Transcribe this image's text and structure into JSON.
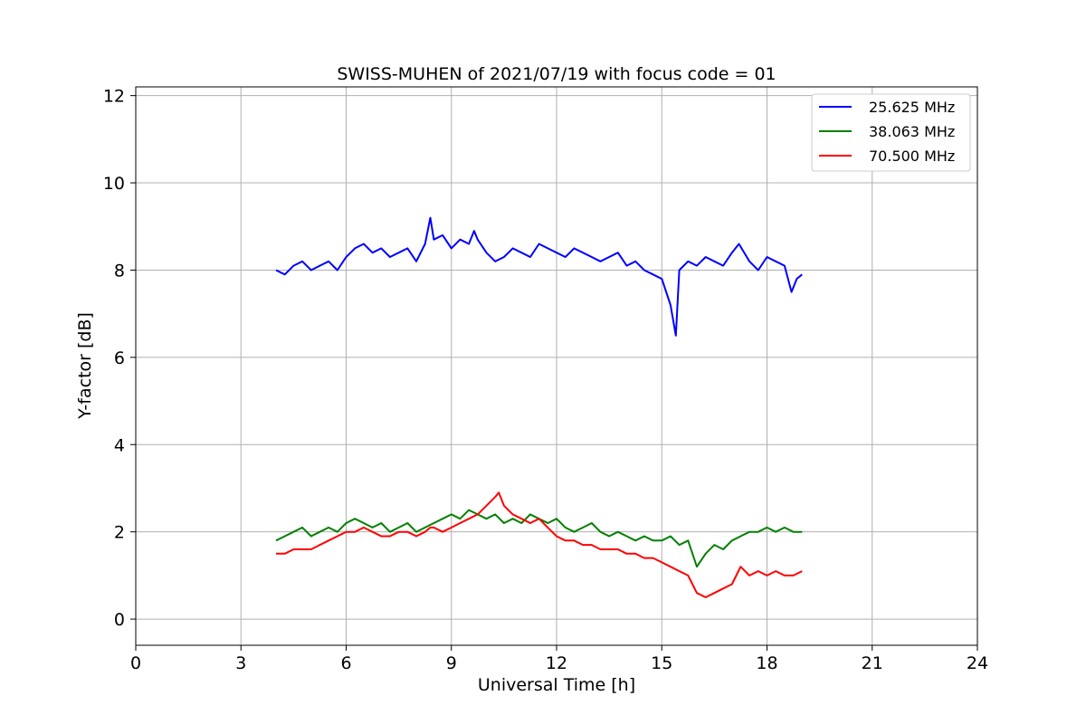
{
  "chart_data": {
    "type": "line",
    "title": "SWISS-MUHEN of 2021/07/19 with focus code = 01",
    "xlabel": "Universal Time [h]",
    "ylabel": "Y-factor [dB]",
    "xlim": [
      0,
      24
    ],
    "ylim": [
      -0.6,
      12.2
    ],
    "xticks": [
      0,
      3,
      6,
      9,
      12,
      15,
      18,
      21,
      24
    ],
    "yticks": [
      0,
      2,
      4,
      6,
      8,
      10,
      12
    ],
    "grid": true,
    "legend_position": "top-right",
    "series": [
      {
        "name": "25.625 MHz",
        "color": "#0000ff",
        "x": [
          4.0,
          4.25,
          4.5,
          4.75,
          5.0,
          5.25,
          5.5,
          5.75,
          6.0,
          6.25,
          6.5,
          6.75,
          7.0,
          7.25,
          7.5,
          7.75,
          8.0,
          8.25,
          8.4,
          8.5,
          8.75,
          9.0,
          9.25,
          9.5,
          9.65,
          9.75,
          10.0,
          10.25,
          10.5,
          10.75,
          11.0,
          11.25,
          11.5,
          11.75,
          12.0,
          12.25,
          12.5,
          12.75,
          13.0,
          13.25,
          13.5,
          13.75,
          14.0,
          14.25,
          14.5,
          14.75,
          15.0,
          15.25,
          15.4,
          15.5,
          15.75,
          16.0,
          16.25,
          16.5,
          16.75,
          17.0,
          17.2,
          17.5,
          17.75,
          18.0,
          18.25,
          18.5,
          18.7,
          18.85,
          19.0
        ],
        "y": [
          8.0,
          7.9,
          8.1,
          8.2,
          8.0,
          8.1,
          8.2,
          8.0,
          8.3,
          8.5,
          8.6,
          8.4,
          8.5,
          8.3,
          8.4,
          8.5,
          8.2,
          8.6,
          9.2,
          8.7,
          8.8,
          8.5,
          8.7,
          8.6,
          8.9,
          8.7,
          8.4,
          8.2,
          8.3,
          8.5,
          8.4,
          8.3,
          8.6,
          8.5,
          8.4,
          8.3,
          8.5,
          8.4,
          8.3,
          8.2,
          8.3,
          8.4,
          8.1,
          8.2,
          8.0,
          7.9,
          7.8,
          7.2,
          6.5,
          8.0,
          8.2,
          8.1,
          8.3,
          8.2,
          8.1,
          8.4,
          8.6,
          8.2,
          8.0,
          8.3,
          8.2,
          8.1,
          7.5,
          7.8,
          7.9
        ]
      },
      {
        "name": "38.063 MHz",
        "color": "#008000",
        "x": [
          4.0,
          4.25,
          4.5,
          4.75,
          5.0,
          5.25,
          5.5,
          5.75,
          6.0,
          6.25,
          6.5,
          6.75,
          7.0,
          7.25,
          7.5,
          7.75,
          8.0,
          8.25,
          8.5,
          8.75,
          9.0,
          9.25,
          9.5,
          9.75,
          10.0,
          10.25,
          10.5,
          10.75,
          11.0,
          11.25,
          11.5,
          11.75,
          12.0,
          12.25,
          12.5,
          12.75,
          13.0,
          13.25,
          13.5,
          13.75,
          14.0,
          14.25,
          14.5,
          14.75,
          15.0,
          15.25,
          15.5,
          15.75,
          16.0,
          16.25,
          16.5,
          16.75,
          17.0,
          17.25,
          17.5,
          17.75,
          18.0,
          18.25,
          18.5,
          18.75,
          19.0
        ],
        "y": [
          1.8,
          1.9,
          2.0,
          2.1,
          1.9,
          2.0,
          2.1,
          2.0,
          2.2,
          2.3,
          2.2,
          2.1,
          2.2,
          2.0,
          2.1,
          2.2,
          2.0,
          2.1,
          2.2,
          2.3,
          2.4,
          2.3,
          2.5,
          2.4,
          2.3,
          2.4,
          2.2,
          2.3,
          2.2,
          2.4,
          2.3,
          2.2,
          2.3,
          2.1,
          2.0,
          2.1,
          2.2,
          2.0,
          1.9,
          2.0,
          1.9,
          1.8,
          1.9,
          1.8,
          1.8,
          1.9,
          1.7,
          1.8,
          1.2,
          1.5,
          1.7,
          1.6,
          1.8,
          1.9,
          2.0,
          2.0,
          2.1,
          2.0,
          2.1,
          2.0,
          2.0
        ]
      },
      {
        "name": "70.500 MHz",
        "color": "#ff0000",
        "x": [
          4.0,
          4.25,
          4.5,
          4.75,
          5.0,
          5.25,
          5.5,
          5.75,
          6.0,
          6.25,
          6.5,
          6.75,
          7.0,
          7.25,
          7.5,
          7.75,
          8.0,
          8.25,
          8.4,
          8.5,
          8.75,
          9.0,
          9.25,
          9.5,
          9.75,
          10.0,
          10.25,
          10.35,
          10.5,
          10.75,
          11.0,
          11.25,
          11.5,
          11.75,
          12.0,
          12.25,
          12.5,
          12.75,
          13.0,
          13.25,
          13.5,
          13.75,
          14.0,
          14.25,
          14.5,
          14.75,
          15.0,
          15.25,
          15.5,
          15.75,
          16.0,
          16.25,
          16.5,
          16.75,
          17.0,
          17.25,
          17.5,
          17.75,
          18.0,
          18.25,
          18.5,
          18.75,
          19.0
        ],
        "y": [
          1.5,
          1.5,
          1.6,
          1.6,
          1.6,
          1.7,
          1.8,
          1.9,
          2.0,
          2.0,
          2.1,
          2.0,
          1.9,
          1.9,
          2.0,
          2.0,
          1.9,
          2.0,
          2.1,
          2.1,
          2.0,
          2.1,
          2.2,
          2.3,
          2.4,
          2.6,
          2.8,
          2.9,
          2.6,
          2.4,
          2.3,
          2.2,
          2.3,
          2.1,
          1.9,
          1.8,
          1.8,
          1.7,
          1.7,
          1.6,
          1.6,
          1.6,
          1.5,
          1.5,
          1.4,
          1.4,
          1.3,
          1.2,
          1.1,
          1.0,
          0.6,
          0.5,
          0.6,
          0.7,
          0.8,
          1.2,
          1.0,
          1.1,
          1.0,
          1.1,
          1.0,
          1.0,
          1.1
        ]
      }
    ]
  }
}
